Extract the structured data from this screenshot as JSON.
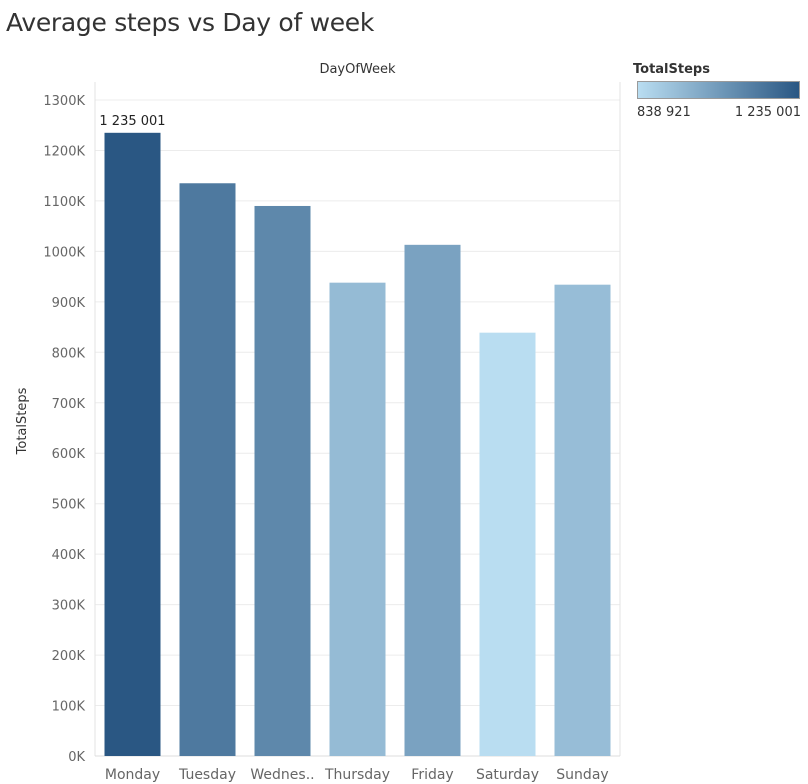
{
  "title": "Average steps vs Day of week",
  "chart_data": {
    "type": "bar",
    "title": "Average steps vs Day of week",
    "xlabel": "DayOfWeek",
    "ylabel": "TotalSteps",
    "categories": [
      "Monday",
      "Tuesday",
      "Wednes..",
      "Thursday",
      "Friday",
      "Saturday",
      "Sunday"
    ],
    "values": [
      1235001,
      1135000,
      1090000,
      938000,
      1013000,
      838921,
      934000
    ],
    "ylim": [
      0,
      1300000
    ],
    "yticks": [
      0,
      100000,
      200000,
      300000,
      400000,
      500000,
      600000,
      700000,
      800000,
      900000,
      1000000,
      1100000,
      1200000,
      1300000
    ],
    "ytick_labels": [
      "0K",
      "100K",
      "200K",
      "300K",
      "400K",
      "500K",
      "600K",
      "700K",
      "800K",
      "900K",
      "1000K",
      "1100K",
      "1200K",
      "1300K"
    ],
    "data_labels": [
      {
        "index": 0,
        "text": "1 235 001"
      }
    ],
    "grid": true,
    "legend": {
      "title": "TotalSteps",
      "type": "color-gradient",
      "min_label": "838 921",
      "max_label": "1 235 001",
      "min_value": 838921,
      "max_value": 1235001,
      "color_min": "#b9ddf1",
      "color_max": "#2a5783",
      "position": "top-right"
    }
  }
}
